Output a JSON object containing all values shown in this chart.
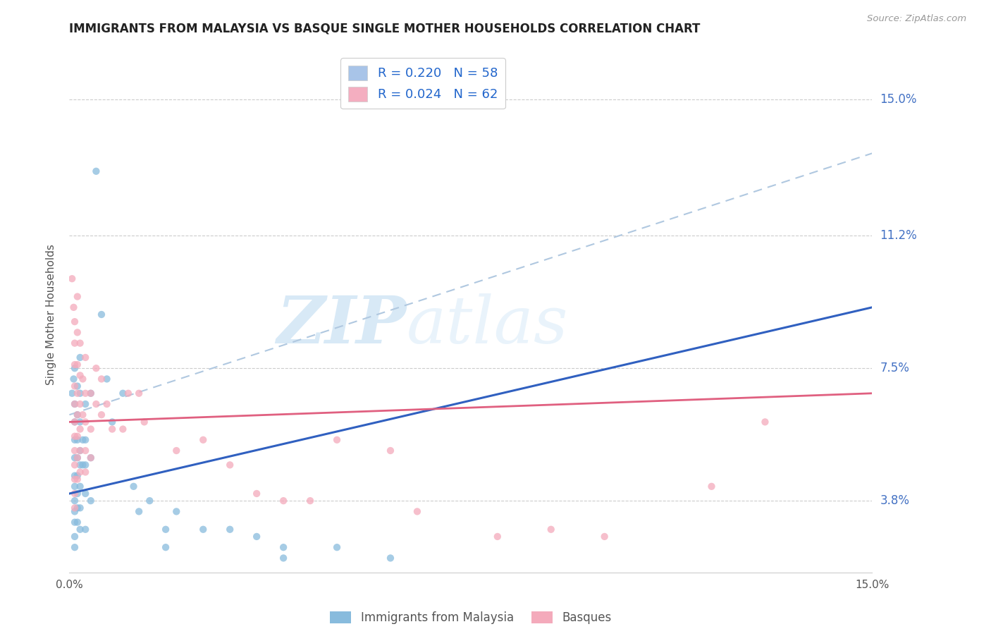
{
  "title": "IMMIGRANTS FROM MALAYSIA VS BASQUE SINGLE MOTHER HOUSEHOLDS CORRELATION CHART",
  "source": "Source: ZipAtlas.com",
  "ylabel": "Single Mother Households",
  "right_axis_labels": [
    "15.0%",
    "11.2%",
    "7.5%",
    "3.8%"
  ],
  "xmin": 0.0,
  "xmax": 0.15,
  "ymin": 0.018,
  "ymax": 0.162,
  "legend_entries": [
    {
      "label_r": "R = 0.220",
      "label_n": "N = 58",
      "color": "#a8c4e8"
    },
    {
      "label_r": "R = 0.024",
      "label_n": "N = 62",
      "color": "#f4aec0"
    }
  ],
  "bottom_legend": [
    "Immigrants from Malaysia",
    "Basques"
  ],
  "blue_scatter": [
    [
      0.0005,
      0.068
    ],
    [
      0.0008,
      0.072
    ],
    [
      0.001,
      0.075
    ],
    [
      0.001,
      0.065
    ],
    [
      0.001,
      0.06
    ],
    [
      0.001,
      0.055
    ],
    [
      0.001,
      0.05
    ],
    [
      0.001,
      0.045
    ],
    [
      0.001,
      0.042
    ],
    [
      0.001,
      0.038
    ],
    [
      0.001,
      0.035
    ],
    [
      0.001,
      0.032
    ],
    [
      0.001,
      0.028
    ],
    [
      0.001,
      0.025
    ],
    [
      0.0015,
      0.07
    ],
    [
      0.0015,
      0.062
    ],
    [
      0.0015,
      0.055
    ],
    [
      0.0015,
      0.05
    ],
    [
      0.0015,
      0.045
    ],
    [
      0.0015,
      0.04
    ],
    [
      0.0015,
      0.036
    ],
    [
      0.0015,
      0.032
    ],
    [
      0.002,
      0.078
    ],
    [
      0.002,
      0.068
    ],
    [
      0.002,
      0.06
    ],
    [
      0.002,
      0.052
    ],
    [
      0.002,
      0.048
    ],
    [
      0.002,
      0.042
    ],
    [
      0.002,
      0.036
    ],
    [
      0.002,
      0.03
    ],
    [
      0.0025,
      0.055
    ],
    [
      0.0025,
      0.048
    ],
    [
      0.003,
      0.065
    ],
    [
      0.003,
      0.055
    ],
    [
      0.003,
      0.048
    ],
    [
      0.003,
      0.04
    ],
    [
      0.003,
      0.03
    ],
    [
      0.004,
      0.068
    ],
    [
      0.004,
      0.05
    ],
    [
      0.004,
      0.038
    ],
    [
      0.005,
      0.13
    ],
    [
      0.006,
      0.09
    ],
    [
      0.007,
      0.072
    ],
    [
      0.008,
      0.06
    ],
    [
      0.01,
      0.068
    ],
    [
      0.012,
      0.042
    ],
    [
      0.013,
      0.035
    ],
    [
      0.015,
      0.038
    ],
    [
      0.018,
      0.03
    ],
    [
      0.018,
      0.025
    ],
    [
      0.02,
      0.035
    ],
    [
      0.025,
      0.03
    ],
    [
      0.03,
      0.03
    ],
    [
      0.035,
      0.028
    ],
    [
      0.04,
      0.025
    ],
    [
      0.04,
      0.022
    ],
    [
      0.05,
      0.025
    ],
    [
      0.06,
      0.022
    ]
  ],
  "pink_scatter": [
    [
      0.0005,
      0.1
    ],
    [
      0.0008,
      0.092
    ],
    [
      0.001,
      0.088
    ],
    [
      0.001,
      0.082
    ],
    [
      0.001,
      0.076
    ],
    [
      0.001,
      0.07
    ],
    [
      0.001,
      0.065
    ],
    [
      0.001,
      0.06
    ],
    [
      0.001,
      0.056
    ],
    [
      0.001,
      0.052
    ],
    [
      0.001,
      0.048
    ],
    [
      0.001,
      0.044
    ],
    [
      0.001,
      0.04
    ],
    [
      0.001,
      0.036
    ],
    [
      0.0015,
      0.095
    ],
    [
      0.0015,
      0.085
    ],
    [
      0.0015,
      0.076
    ],
    [
      0.0015,
      0.068
    ],
    [
      0.0015,
      0.062
    ],
    [
      0.0015,
      0.056
    ],
    [
      0.0015,
      0.05
    ],
    [
      0.0015,
      0.044
    ],
    [
      0.002,
      0.082
    ],
    [
      0.002,
      0.073
    ],
    [
      0.002,
      0.065
    ],
    [
      0.002,
      0.058
    ],
    [
      0.002,
      0.052
    ],
    [
      0.002,
      0.046
    ],
    [
      0.0025,
      0.072
    ],
    [
      0.0025,
      0.062
    ],
    [
      0.003,
      0.078
    ],
    [
      0.003,
      0.068
    ],
    [
      0.003,
      0.06
    ],
    [
      0.003,
      0.052
    ],
    [
      0.003,
      0.046
    ],
    [
      0.004,
      0.068
    ],
    [
      0.004,
      0.058
    ],
    [
      0.004,
      0.05
    ],
    [
      0.005,
      0.075
    ],
    [
      0.005,
      0.065
    ],
    [
      0.006,
      0.072
    ],
    [
      0.006,
      0.062
    ],
    [
      0.007,
      0.065
    ],
    [
      0.008,
      0.058
    ],
    [
      0.01,
      0.058
    ],
    [
      0.011,
      0.068
    ],
    [
      0.013,
      0.068
    ],
    [
      0.014,
      0.06
    ],
    [
      0.02,
      0.052
    ],
    [
      0.025,
      0.055
    ],
    [
      0.03,
      0.048
    ],
    [
      0.035,
      0.04
    ],
    [
      0.04,
      0.038
    ],
    [
      0.045,
      0.038
    ],
    [
      0.05,
      0.055
    ],
    [
      0.06,
      0.052
    ],
    [
      0.065,
      0.035
    ],
    [
      0.08,
      0.028
    ],
    [
      0.09,
      0.03
    ],
    [
      0.1,
      0.028
    ],
    [
      0.12,
      0.042
    ],
    [
      0.13,
      0.06
    ]
  ],
  "blue_line": {
    "x": [
      0.0,
      0.15
    ],
    "y": [
      0.04,
      0.092
    ]
  },
  "pink_line": {
    "x": [
      0.0,
      0.15
    ],
    "y": [
      0.06,
      0.068
    ]
  },
  "dashed_line": {
    "x": [
      0.0,
      0.15
    ],
    "y": [
      0.062,
      0.135
    ]
  },
  "blue_scatter_color": "#88bbdd",
  "pink_scatter_color": "#f4aabb",
  "blue_line_color": "#3060c0",
  "pink_line_color": "#e06080",
  "dashed_line_color": "#b0c8e0",
  "scatter_alpha": 0.75,
  "scatter_size": 55,
  "watermark_zip": "ZIP",
  "watermark_atlas": "atlas",
  "grid_color": "#cccccc",
  "ytick_labels": [
    "3.8%",
    "7.5%",
    "11.2%",
    "15.0%"
  ],
  "ytick_values": [
    0.038,
    0.075,
    0.112,
    0.15
  ],
  "xtick_labels": [
    "0.0%",
    "15.0%"
  ],
  "xtick_values": [
    0.0,
    0.15
  ]
}
